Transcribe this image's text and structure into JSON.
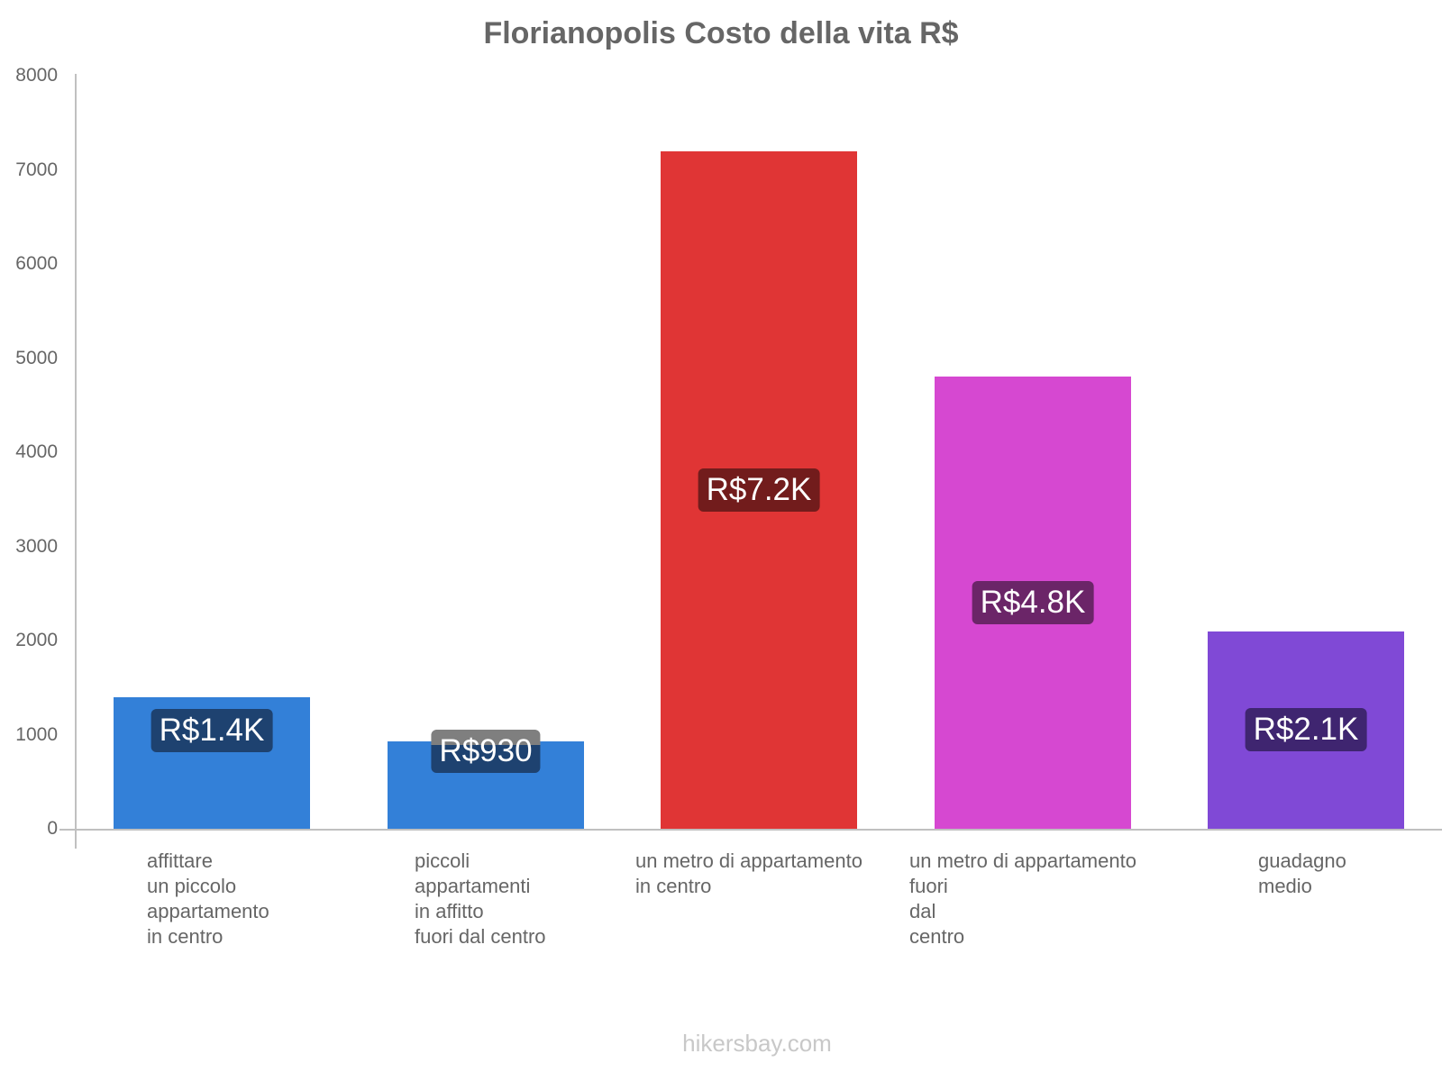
{
  "chart_data": {
    "type": "bar",
    "title": "Florianopolis Costo della vita R$",
    "xlabel": "",
    "ylabel": "",
    "ylim": [
      0,
      8000
    ],
    "yticks": [
      0,
      1000,
      2000,
      3000,
      4000,
      5000,
      6000,
      7000,
      8000
    ],
    "grid": false,
    "legend": null,
    "categories": [
      "affittare un piccolo appartamento in centro",
      "piccoli appartamenti in affitto fuori dal centro",
      "un metro di appartamento in centro",
      "un metro di appartamento fuori dal centro",
      "guadagno medio"
    ],
    "values": [
      1400,
      930,
      7200,
      4800,
      2100
    ],
    "value_labels": [
      "R$1.4K",
      "R$930",
      "R$7.2K",
      "R$4.8K",
      "R$2.1K"
    ],
    "colors": [
      "#3380d8",
      "#3380d8",
      "#e03535",
      "#d648d1",
      "#8049d6"
    ],
    "label_bg_colors": [
      "#1e4270",
      "#1e4270",
      "#721c1c",
      "#6b2568",
      "#3f2570"
    ]
  },
  "title": "Florianopolis Costo della vita R$",
  "yticks": [
    "0",
    "1000",
    "2000",
    "3000",
    "4000",
    "5000",
    "6000",
    "7000",
    "8000"
  ],
  "xlabels": [
    "affittare\nun piccolo\nappartamento\nin centro",
    "piccoli\nappartamenti\nin affitto\nfuori dal centro",
    "un metro di appartamento\nin centro",
    "un metro di appartamento\nfuori\ndal\ncentro",
    "guadagno\nmedio"
  ],
  "value_labels": [
    "R$1.4K",
    "R$930",
    "R$7.2K",
    "R$4.8K",
    "R$2.1K"
  ],
  "watermark": "hikersbay.com"
}
